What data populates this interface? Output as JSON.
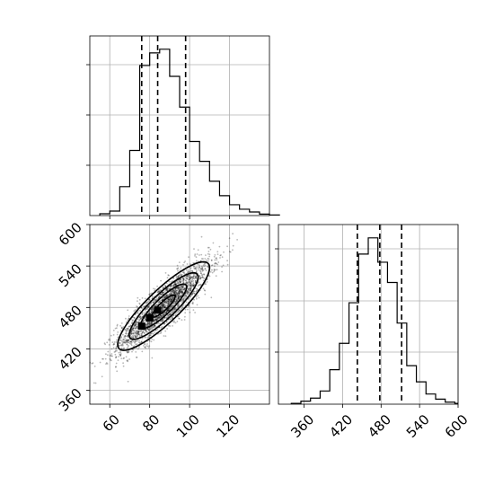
{
  "chart_data": [
    {
      "panel": "hist-x",
      "type": "histogram",
      "bin_edges": [
        55,
        60,
        65,
        70,
        75,
        80,
        85,
        90,
        95,
        100,
        105,
        110,
        115,
        120,
        125,
        130,
        135,
        140,
        145
      ],
      "counts": [
        0.01,
        0.025,
        0.16,
        0.36,
        0.83,
        0.9,
        0.92,
        0.77,
        0.6,
        0.41,
        0.3,
        0.19,
        0.11,
        0.06,
        0.035,
        0.02,
        0.008,
        0.003
      ],
      "quantiles": [
        76,
        84,
        98
      ],
      "xlim": [
        50,
        140
      ],
      "xticks": [
        60,
        80,
        100,
        120
      ],
      "grid": true
    },
    {
      "panel": "hist-y",
      "type": "histogram",
      "bin_edges": [
        340,
        355,
        370,
        385,
        400,
        415,
        430,
        445,
        460,
        475,
        490,
        505,
        520,
        535,
        550,
        565,
        580,
        595,
        610
      ],
      "counts": [
        0.004,
        0.015,
        0.03,
        0.065,
        0.17,
        0.3,
        0.5,
        0.74,
        0.82,
        0.7,
        0.6,
        0.4,
        0.19,
        0.11,
        0.05,
        0.025,
        0.01,
        0.004
      ],
      "quantiles": [
        443,
        478,
        512
      ],
      "xlim": [
        320,
        600
      ],
      "xticks": [
        360,
        420,
        480,
        540,
        600
      ],
      "xtick_labels": [
        "360",
        "420",
        "480",
        "540",
        "600"
      ],
      "grid": true
    },
    {
      "panel": "joint",
      "type": "scatter-contour",
      "xlim": [
        50,
        140
      ],
      "ylim": [
        340,
        600
      ],
      "xticks": [
        60,
        80,
        100,
        120
      ],
      "xtick_labels": [
        "60",
        "80",
        "100",
        "120"
      ],
      "yticks": [
        360,
        420,
        480,
        540,
        600
      ],
      "ytick_labels": [
        "360",
        "420",
        "480",
        "540",
        "600"
      ],
      "grid": true,
      "point_count": 2600,
      "density": {
        "center": [
          87,
          482
        ],
        "sd": [
          11.5,
          32
        ],
        "correlation": 0.87
      },
      "contour_levels_sigma": [
        0.5,
        1.0,
        1.5,
        2.0
      ],
      "high_density_cells": [
        [
          76,
          453
        ],
        [
          80,
          465
        ],
        [
          84,
          476
        ]
      ]
    }
  ]
}
